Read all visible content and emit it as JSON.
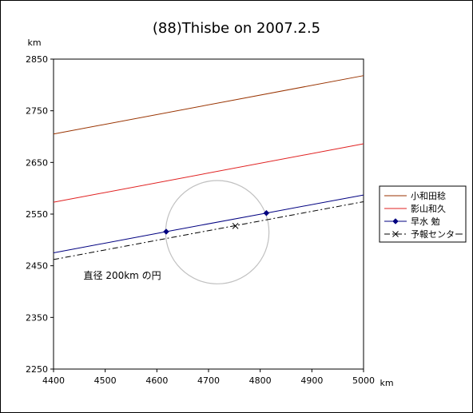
{
  "chart_data": {
    "type": "line",
    "title": "(88)Thisbe on 2007.2.5",
    "xunit": "km",
    "yunit": "km",
    "xlim": [
      4400,
      5000
    ],
    "ylim": [
      2250,
      2850
    ],
    "xticks": [
      4400,
      4500,
      4600,
      4700,
      4800,
      4900,
      5000
    ],
    "yticks": [
      2250,
      2350,
      2450,
      2550,
      2650,
      2750,
      2850
    ],
    "grid": false,
    "legend_position": "right",
    "series": [
      {
        "name": "小和田稔",
        "color": "#993300",
        "style": "solid",
        "marker": "none",
        "x": [
          4400,
          5000
        ],
        "y": [
          2705,
          2818
        ]
      },
      {
        "name": "影山和久",
        "color": "#e02020",
        "style": "solid",
        "marker": "none",
        "x": [
          4400,
          5000
        ],
        "y": [
          2573,
          2686
        ]
      },
      {
        "name": "早水 勉",
        "color": "#000080",
        "style": "solid",
        "marker": "diamond",
        "x": [
          4400,
          4618,
          4812,
          5000
        ],
        "y": [
          2475,
          2516,
          2552,
          2587
        ],
        "marker_points": [
          [
            4618,
            2516
          ],
          [
            4812,
            2552
          ]
        ]
      },
      {
        "name": "予報センター",
        "color": "#000000",
        "style": "dashdot",
        "marker": "x",
        "x": [
          4400,
          5000
        ],
        "y": [
          2462,
          2574
        ],
        "marker_points": [
          [
            4752,
            2527
          ]
        ]
      }
    ],
    "circle": {
      "cx": 4717,
      "cy": 2515,
      "r": 100,
      "color": "#c0c0c0"
    },
    "annotations": [
      {
        "text": "直径 200km の円",
        "x": 4458,
        "y": 2425
      }
    ]
  }
}
